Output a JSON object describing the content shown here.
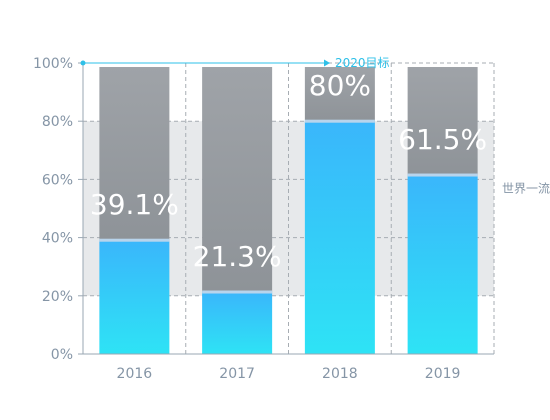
{
  "chart_data": {
    "type": "bar",
    "stacked": true,
    "categories": [
      "2016",
      "2017",
      "2018",
      "2019"
    ],
    "values": [
      39.1,
      21.3,
      80,
      61.5
    ],
    "value_labels": [
      "39.1%",
      "21.3%",
      "80%",
      "61.5%"
    ],
    "total": 100,
    "ylim": [
      0,
      100
    ],
    "y_ticks": [
      0,
      20,
      40,
      60,
      80,
      100
    ],
    "y_tick_labels": [
      "0%",
      "20%",
      "40%",
      "60%",
      "80%",
      "100%"
    ],
    "grid": "dashed",
    "target": {
      "label": "2020目标",
      "value": 100
    },
    "band": {
      "label": "世界一流",
      "from": 20,
      "to": 80
    },
    "colors": {
      "value_top": "#3ab6fb",
      "value_bottom": "#2ee3f5",
      "remainder_top": "#9fa3a8",
      "remainder_bottom": "#8e9398",
      "separator": "#b8d4ec",
      "band": "#e7e9eb",
      "target": "#2ec0e8",
      "axis": "#9aa7b3",
      "grid": "#a7adb3",
      "tick_text": "#8595a6"
    }
  }
}
